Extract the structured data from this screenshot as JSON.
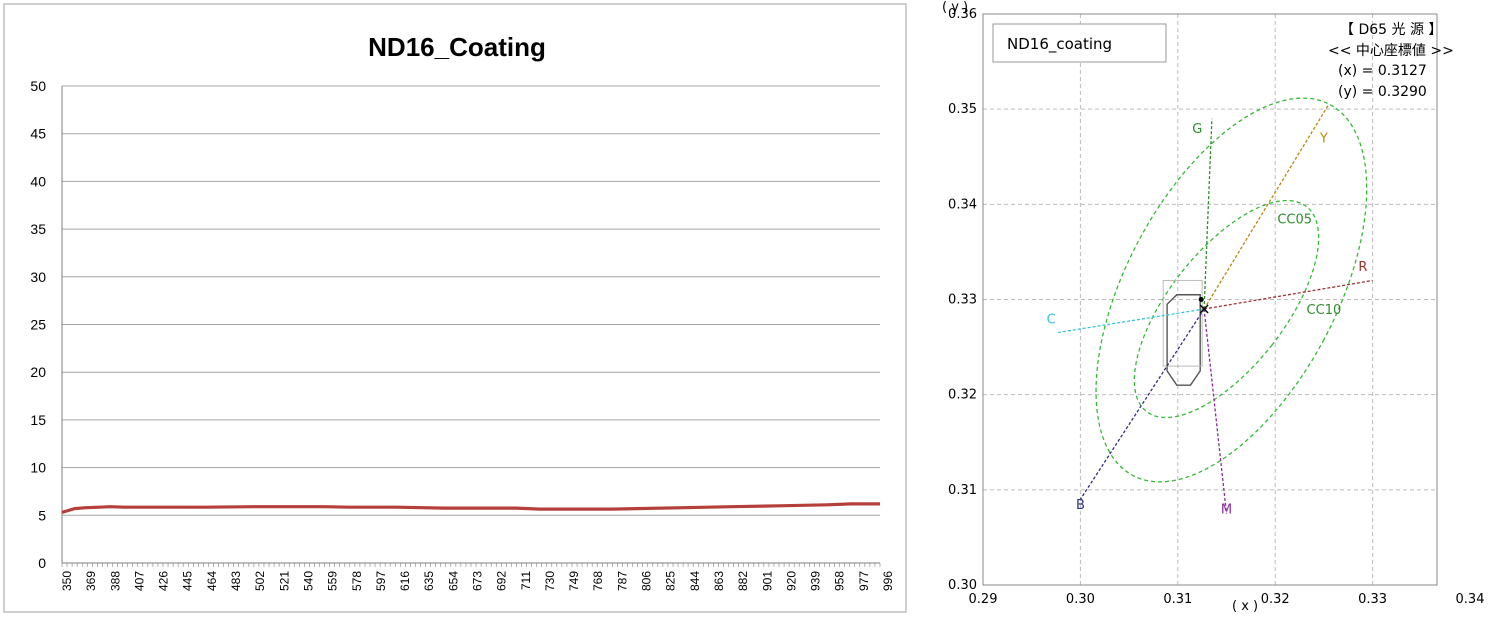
{
  "chart_data": [
    {
      "type": "line",
      "title": "ND16_Coating",
      "xlabel": "",
      "ylabel": "",
      "ylim": [
        0,
        50
      ],
      "yticks": [
        "0",
        "5",
        "10",
        "15",
        "20",
        "25",
        "30",
        "35",
        "40",
        "45",
        "50"
      ],
      "x_tick_labels": [
        "350",
        "369",
        "388",
        "407",
        "426",
        "445",
        "464",
        "483",
        "502",
        "521",
        "540",
        "559",
        "578",
        "597",
        "616",
        "635",
        "654",
        "673",
        "692",
        "711",
        "730",
        "749",
        "768",
        "787",
        "806",
        "825",
        "844",
        "863",
        "882",
        "901",
        "920",
        "939",
        "958",
        "977",
        "996"
      ],
      "grid": "horizontal",
      "series": [
        {
          "color": "#b5403b",
          "x": [
            350,
            355,
            360,
            369,
            380,
            388,
            400,
            426,
            464,
            502,
            540,
            559,
            578,
            616,
            654,
            692,
            711,
            730,
            749,
            768,
            787,
            806,
            844,
            882,
            920,
            958,
            977,
            996,
            1000
          ],
          "y": [
            5.3,
            5.5,
            5.7,
            5.8,
            5.85,
            5.9,
            5.85,
            5.85,
            5.85,
            5.9,
            5.9,
            5.9,
            5.85,
            5.85,
            5.75,
            5.75,
            5.75,
            5.65,
            5.65,
            5.65,
            5.65,
            5.7,
            5.8,
            5.9,
            6.0,
            6.1,
            6.2,
            6.2,
            6.2
          ]
        }
      ]
    },
    {
      "type": "scatter",
      "title": "",
      "chart_label": "ND16_coating",
      "xlabel": "( x )",
      "ylabel": "( y )",
      "xlim": [
        0.29,
        0.34
      ],
      "ylim": [
        0.3,
        0.36
      ],
      "xticks": [
        "0.29",
        "0.30",
        "0.31",
        "0.32",
        "0.33",
        "0.34"
      ],
      "yticks": [
        "0.30",
        "0.31",
        "0.32",
        "0.33",
        "0.34",
        "0.35",
        "0.36"
      ],
      "grid": "dashed",
      "annotation": [
        "【 D65 光 源 】",
        "<< 中心座標値 >>",
        "(x) = 0.3127",
        "(y) = 0.3290"
      ],
      "center": {
        "x": 0.3127,
        "y": 0.329
      },
      "sample_point": {
        "x": 0.3124,
        "y": 0.33
      },
      "color_axes": [
        {
          "label": "R",
          "color": "#a03030",
          "end": {
            "x": 0.33,
            "y": 0.332
          },
          "label_at": {
            "x": 0.329,
            "y": 0.333
          }
        },
        {
          "label": "G",
          "color": "#2e8b2e",
          "end": {
            "x": 0.3135,
            "y": 0.349
          },
          "label_at": {
            "x": 0.312,
            "y": 0.3475
          }
        },
        {
          "label": "B",
          "color": "#303080",
          "end": {
            "x": 0.3,
            "y": 0.309
          },
          "label_at": {
            "x": 0.3,
            "y": 0.308
          }
        },
        {
          "label": "C",
          "color": "#35c6d8",
          "end": {
            "x": 0.2975,
            "y": 0.3265
          },
          "label_at": {
            "x": 0.297,
            "y": 0.3275
          }
        },
        {
          "label": "M",
          "color": "#8a2a9a",
          "end": {
            "x": 0.315,
            "y": 0.3075
          },
          "label_at": {
            "x": 0.315,
            "y": 0.3075
          }
        },
        {
          "label": "Y",
          "color": "#b8860b",
          "end": {
            "x": 0.3255,
            "y": 0.3505
          },
          "label_at": {
            "x": 0.325,
            "y": 0.3465
          }
        }
      ],
      "ellipses": [
        {
          "label": "CC05",
          "color": "#33bb33",
          "label_at": {
            "x": 0.322,
            "y": 0.338
          }
        },
        {
          "label": "CC10",
          "color": "#33bb33",
          "label_at": {
            "x": 0.325,
            "y": 0.3285
          }
        }
      ],
      "tolerance_box_color": "#555555"
    }
  ]
}
